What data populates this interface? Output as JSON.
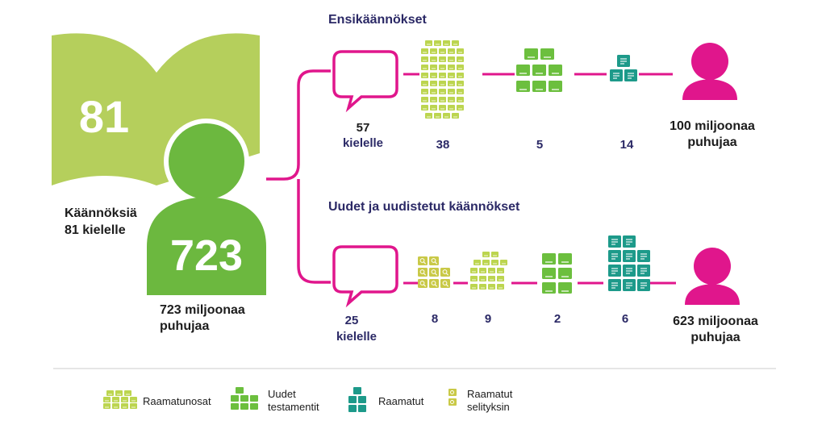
{
  "colors": {
    "book": "#b5cf5c",
    "person_green": "#6cb83f",
    "magenta": "#e0168c",
    "pale_green": "#bcd54f",
    "mid_green": "#6cbf3e",
    "teal": "#1d9a8a",
    "olive_yellow": "#c9c947",
    "navy": "#2b2966",
    "divider": "#cccccc"
  },
  "left": {
    "book_number": "81",
    "book_caption_line1": "Käännöksiä",
    "book_caption_line2": "81 kielelle",
    "person_number": "723",
    "person_caption_line1": "723 miljoonaa",
    "person_caption_line2": "puhujaa"
  },
  "first_row": {
    "heading": "Ensikäännökset",
    "languages_number": "57",
    "languages_label": "kielelle",
    "counts": [
      "38",
      "5",
      "14"
    ],
    "speakers_line1": "100 miljoonaa",
    "speakers_line2": "puhujaa"
  },
  "second_row": {
    "heading": "Uudet ja uudistetut käännökset",
    "languages_number": "25",
    "languages_label": "kielelle",
    "counts": [
      "8",
      "9",
      "2",
      "6"
    ],
    "speakers_line1": "623 miljoonaa",
    "speakers_line2": "puhujaa"
  },
  "legend": {
    "items": [
      {
        "icon": "bible-portions-icon",
        "label_line1": "Raamatunosat",
        "label_line2": ""
      },
      {
        "icon": "new-testaments-icon",
        "label_line1": "Uudet",
        "label_line2": "testamentit"
      },
      {
        "icon": "bibles-icon",
        "label_line1": "Raamatut",
        "label_line2": ""
      },
      {
        "icon": "study-bibles-icon",
        "label_line1": "Raamatut",
        "label_line2": "selityksin"
      }
    ]
  }
}
